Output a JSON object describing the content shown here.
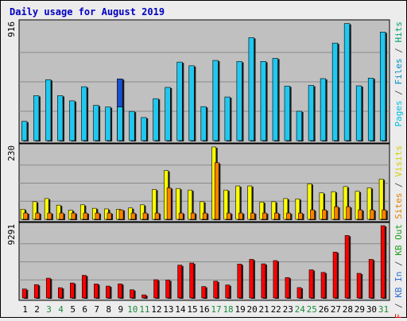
{
  "chart_data": {
    "type": "bar",
    "title": "Daily usage for August 2019",
    "categories": [
      "1",
      "2",
      "3",
      "4",
      "5",
      "6",
      "7",
      "8",
      "9",
      "10",
      "11",
      "12",
      "13",
      "14",
      "15",
      "16",
      "17",
      "18",
      "19",
      "20",
      "21",
      "22",
      "23",
      "24",
      "25",
      "26",
      "27",
      "28",
      "29",
      "30",
      "31"
    ],
    "weekend_days": [
      "3",
      "4",
      "10",
      "11",
      "17",
      "18",
      "24",
      "25",
      "31"
    ],
    "panels": [
      {
        "id": "hits-panel",
        "max_label": "916",
        "ymax": 916,
        "side_labels": [
          {
            "text": "Pages",
            "color": "#00c0e0"
          },
          {
            "text": " / ",
            "color": "#555555"
          },
          {
            "text": "Files",
            "color": "#0090c0"
          },
          {
            "text": " / ",
            "color": "#555555"
          },
          {
            "text": "Hits",
            "color": "#00a070"
          }
        ],
        "series": [
          {
            "name": "Hits",
            "color": "#20c8f0",
            "values": [
              150,
              350,
              475,
              350,
              310,
              420,
              275,
              262,
              481,
              228,
              180,
              327,
              415,
              612,
              583,
              265,
              625,
              340,
              616,
              802,
              617,
              641,
              425,
              229,
              430,
              483,
              760,
              912,
              427,
              487,
              846
            ]
          },
          {
            "name": "Files",
            "color": "#1a4fd0",
            "values": [
              null,
              null,
              null,
              null,
              null,
              null,
              null,
              null,
              481,
              null,
              null,
              null,
              null,
              null,
              null,
              null,
              null,
              null,
              null,
              null,
              null,
              null,
              null,
              null,
              null,
              null,
              null,
              null,
              null,
              null,
              null
            ]
          },
          {
            "name": "Pages",
            "color": "#20c8f0",
            "values": [
              null,
              null,
              null,
              null,
              null,
              null,
              null,
              null,
              262,
              null,
              null,
              null,
              null,
              null,
              null,
              null,
              null,
              null,
              null,
              null,
              null,
              null,
              null,
              null,
              null,
              null,
              null,
              null,
              null,
              null,
              null
            ]
          }
        ]
      },
      {
        "id": "visits-panel",
        "max_label": "230",
        "ymax": 230,
        "side_labels": [
          {
            "text": "Sites",
            "color": "#e08000"
          },
          {
            "text": " / ",
            "color": "#555555"
          },
          {
            "text": "Visits",
            "color": "#d0d000"
          }
        ],
        "series": [
          {
            "name": "Visits",
            "color": "#ffff00",
            "values": [
              32,
              56,
              66,
              45,
              29,
              46,
              35,
              33,
              32,
              36,
              46,
              95,
              155,
              98,
              93,
              56,
              230,
              93,
              106,
              106,
              55,
              56,
              66,
              65,
              113,
              84,
              88,
              104,
              89,
              100,
              128
            ]
          },
          {
            "name": "Sites",
            "color": "#ff8000",
            "values": [
              20,
              20,
              20,
              20,
              20,
              20,
              20,
              20,
              30,
              20,
              20,
              20,
              100,
              20,
              20,
              20,
              180,
              20,
              20,
              20,
              20,
              20,
              20,
              20,
              30,
              30,
              40,
              40,
              30,
              30,
              30
            ]
          }
        ]
      },
      {
        "id": "kb-panel",
        "max_label": "9291",
        "ymax": 9291,
        "side_labels": [
          {
            "text": "KB F",
            "color": "#e00000"
          },
          {
            "text": " / ",
            "color": "#555555"
          },
          {
            "text": "KB In",
            "color": "#3070d0"
          },
          {
            "text": " / ",
            "color": "#555555"
          },
          {
            "text": "KB Out",
            "color": "#20a020"
          }
        ],
        "series": [
          {
            "name": "KB F",
            "color": "#ff0000",
            "values": [
              1150,
              1712,
              2544,
              1317,
              1924,
              2908,
              1800,
              1525,
              1812,
              1050,
              400,
              2345,
              2295,
              4215,
              4487,
              1465,
              2158,
              1669,
              4359,
              4958,
              4386,
              4800,
              2623,
              1335,
              3618,
              3286,
              5897,
              8026,
              3164,
              4958,
              9291
            ]
          }
        ]
      }
    ]
  }
}
